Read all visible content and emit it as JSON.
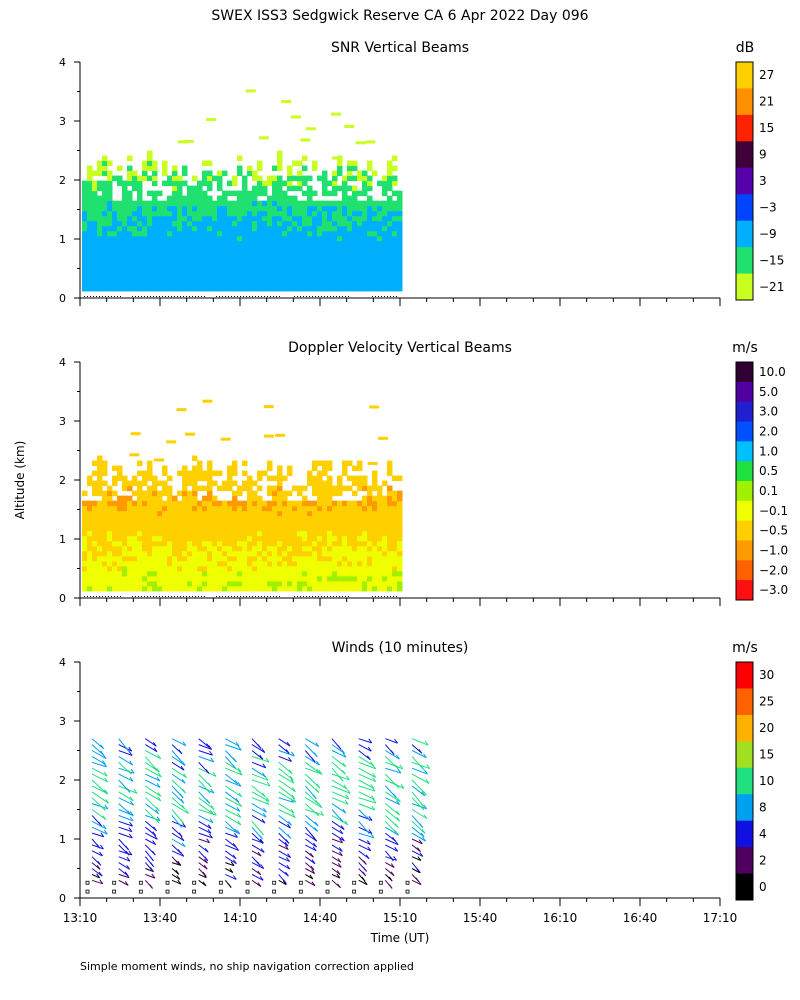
{
  "figure_title": "SWEX ISS3 Sedgwick Reserve CA    6 Apr 2022 Day 096",
  "ylabel": "Altitude (km)",
  "xlabel": "Time (UT)",
  "footnote": "Simple moment winds, no ship navigation correction applied",
  "x_ticks": [
    "13:10",
    "13:40",
    "14:10",
    "14:40",
    "15:10",
    "15:40",
    "16:10",
    "16:40",
    "17:10"
  ],
  "y_ticks": [
    "0",
    "1",
    "2",
    "3",
    "4"
  ],
  "chart_data": [
    {
      "type": "heatmap",
      "title": "SNR Vertical Beams",
      "units": "dB",
      "xlim_utc": [
        "13:10",
        "17:10"
      ],
      "ylim_km": [
        0,
        4
      ],
      "data_end_utc": "15:09",
      "colorbar_labels": [
        "27",
        "21",
        "15",
        "9",
        "3",
        "−3",
        "−9",
        "−15",
        "−21"
      ],
      "colorbar_colors": [
        "#ffd000",
        "#ff9000",
        "#ff2200",
        "#40003a",
        "#5500aa",
        "#0044ff",
        "#00b0ff",
        "#20e070",
        "#c8ff20"
      ],
      "altitude_profile": [
        {
          "altitude_km": 0.3,
          "typical_value": -9
        },
        {
          "altitude_km": 0.8,
          "typical_value": -9
        },
        {
          "altitude_km": 1.3,
          "typical_value": -12
        },
        {
          "altitude_km": 1.7,
          "typical_value": -15
        },
        {
          "altitude_km": 2.0,
          "typical_value": -18
        },
        {
          "altitude_km": 2.4,
          "typical_value": -21
        }
      ]
    },
    {
      "type": "heatmap",
      "title": "Doppler Velocity Vertical Beams",
      "units": "m/s",
      "xlim_utc": [
        "13:10",
        "17:10"
      ],
      "ylim_km": [
        0,
        4
      ],
      "data_end_utc": "15:09",
      "colorbar_labels": [
        "10.0",
        "5.0",
        "3.0",
        "2.0",
        "1.0",
        "0.5",
        "0.1",
        "−0.1",
        "−0.5",
        "−1.0",
        "−2.0",
        "−3.0"
      ],
      "colorbar_colors": [
        "#300030",
        "#5000a0",
        "#2020d0",
        "#0050ff",
        "#00c0ff",
        "#20e040",
        "#a0f000",
        "#f0ff00",
        "#ffd000",
        "#ff9a00",
        "#ff6000",
        "#ff1010"
      ],
      "altitude_profile": [
        {
          "altitude_km": 0.3,
          "typical_value": -0.1
        },
        {
          "altitude_km": 0.8,
          "typical_value": -0.3
        },
        {
          "altitude_km": 1.2,
          "typical_value": -0.5
        },
        {
          "altitude_km": 1.6,
          "typical_value": -0.7
        },
        {
          "altitude_km": 2.0,
          "typical_value": -0.5
        }
      ]
    },
    {
      "type": "scatter",
      "title": "Winds (10 minutes)",
      "units": "m/s",
      "xlim_utc": [
        "13:10",
        "17:10"
      ],
      "ylim_km": [
        0,
        4
      ],
      "colorbar_labels": [
        "30",
        "25",
        "20",
        "15",
        "10",
        "8",
        "4",
        "2",
        "0"
      ],
      "colorbar_colors": [
        "#ff0000",
        "#ff6000",
        "#ffb000",
        "#a0e020",
        "#20e080",
        "#00a0f0",
        "#1010e0",
        "#500060",
        "#000000"
      ],
      "profile_times_utc": [
        "13:10",
        "13:20",
        "13:30",
        "13:40",
        "13:50",
        "14:00",
        "14:10",
        "14:20",
        "14:30",
        "14:40",
        "14:50",
        "15:00",
        "15:10"
      ],
      "wind_profile": [
        {
          "altitude_km": 0.5,
          "speed_ms": 3
        },
        {
          "altitude_km": 1.0,
          "speed_ms": 6
        },
        {
          "altitude_km": 1.5,
          "speed_ms": 10
        },
        {
          "altitude_km": 2.0,
          "speed_ms": 12
        },
        {
          "altitude_km": 2.5,
          "speed_ms": 8
        }
      ]
    }
  ]
}
